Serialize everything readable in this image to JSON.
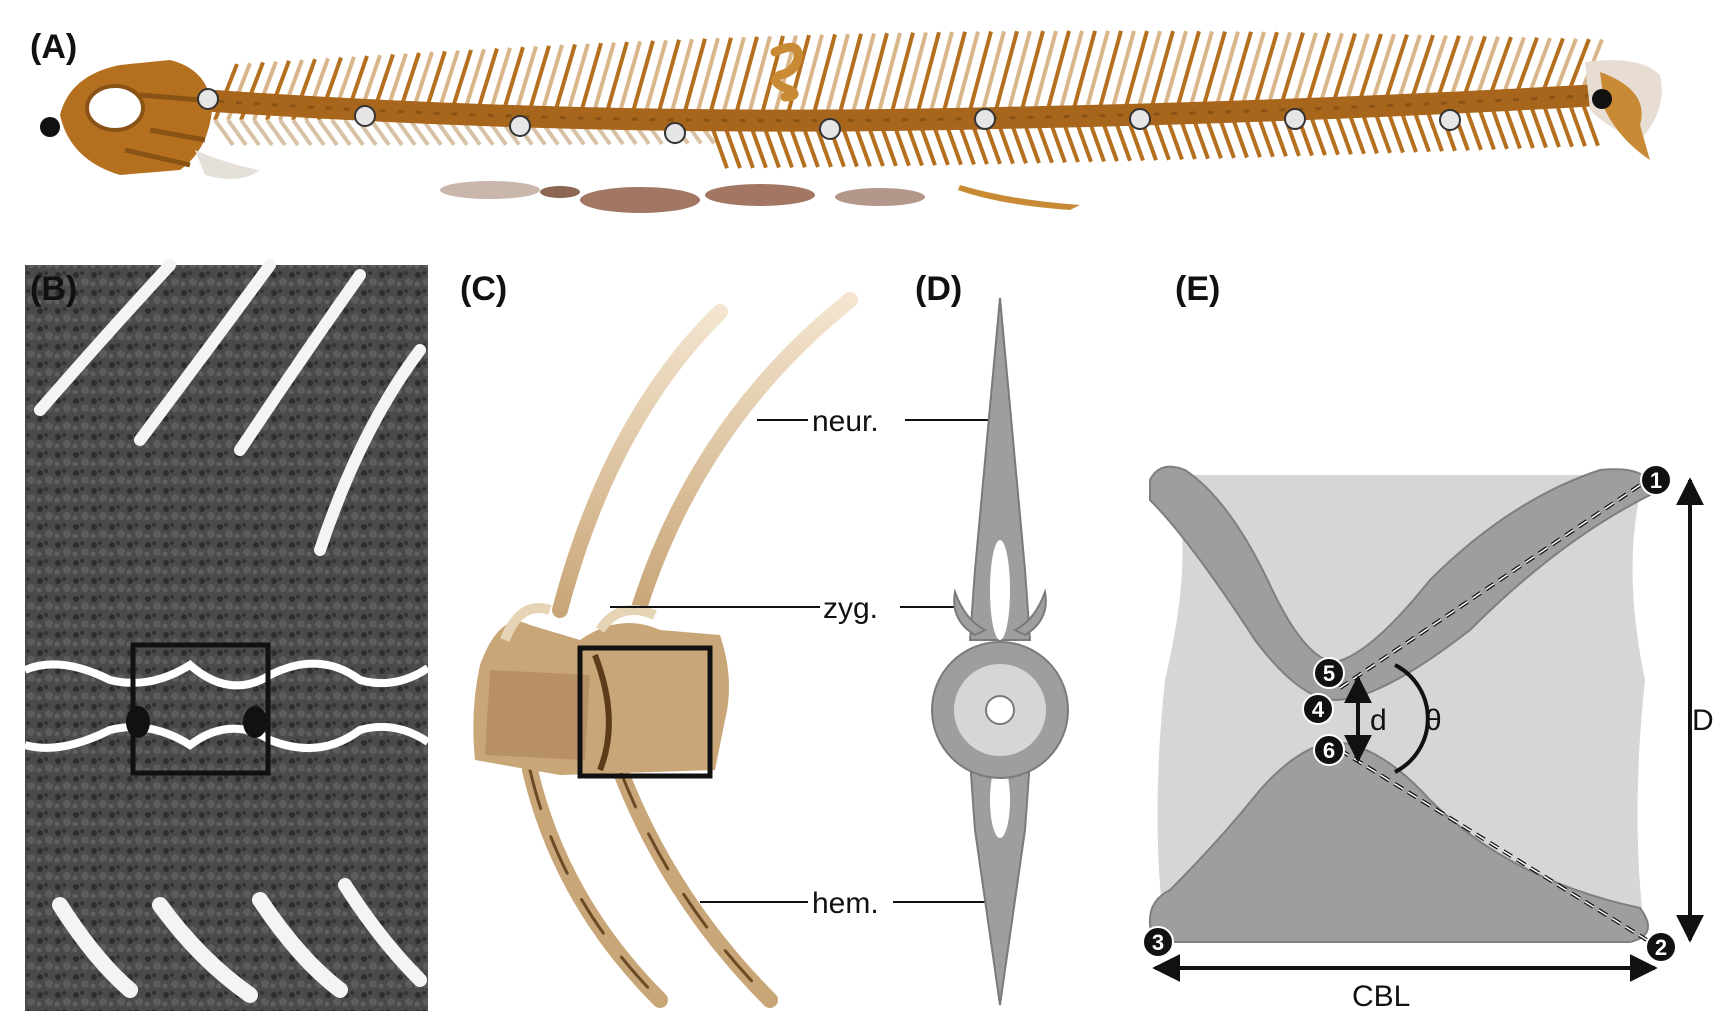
{
  "panels": {
    "a": {
      "label": "(A)"
    },
    "b": {
      "label": "(B)"
    },
    "c": {
      "label": "(C)"
    },
    "d": {
      "label": "(D)"
    },
    "e": {
      "label": "(E)"
    }
  },
  "annotations": {
    "neural": "neur.",
    "zygapophysis": "zyg.",
    "haemal": "hem."
  },
  "measurements": {
    "d": "d",
    "theta": "θ",
    "D": "D",
    "CBL": "CBL"
  },
  "landmarks": [
    "1",
    "2",
    "3",
    "4",
    "5",
    "6"
  ],
  "colors": {
    "bone": "#b5701f",
    "bone_dark": "#8a5316",
    "bone_light": "#d9b68a",
    "vertebra_tan": "#c9a678",
    "diagram_gray": "#9e9e9e",
    "diagram_light": "#d6d6d6",
    "ct_dark": "#3a3a3a"
  }
}
